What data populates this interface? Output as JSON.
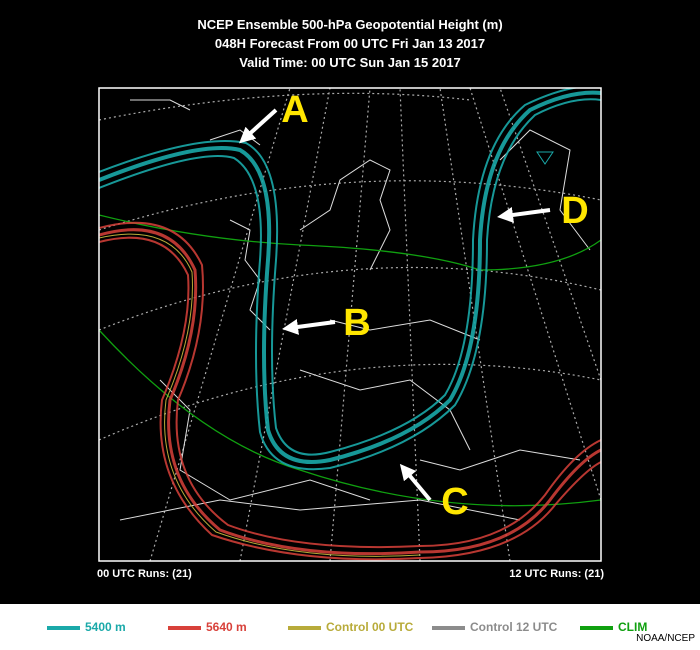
{
  "header": {
    "title_lines": [
      "NCEP Ensemble 500-hPa Geopotential Height (m)",
      "048H Forecast From 00 UTC Fri Jan 13 2017",
      "Valid Time: 00 UTC Sun Jan 15 2017"
    ]
  },
  "map": {
    "labels": [
      "A",
      "B",
      "C",
      "D"
    ]
  },
  "footer": {
    "runs_left": "00 UTC Runs: (21)",
    "runs_right": "12 UTC Runs: (21)"
  },
  "legend": {
    "items": [
      {
        "label": "5400 m",
        "color": "#1aa9a9"
      },
      {
        "label": "5640 m",
        "color": "#d8413a"
      },
      {
        "label": "Control 00 UTC",
        "color": "#b8ab3a"
      },
      {
        "label": "Control 12 UTC",
        "color": "#8c8c8c"
      },
      {
        "label": "CLIM",
        "color": "#10a010"
      }
    ]
  },
  "credit": "NOAA/NCEP"
}
